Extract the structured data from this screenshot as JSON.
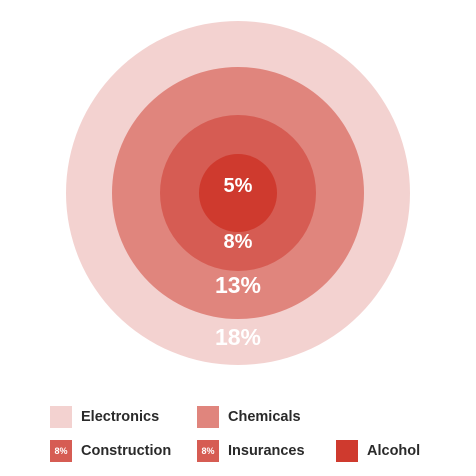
{
  "chart_data": {
    "type": "nested-circle",
    "title": "",
    "series": [
      {
        "name": "Electronics",
        "value": 18,
        "label": "18%",
        "color": "#f3d2d0"
      },
      {
        "name": "Chemicals",
        "value": 13,
        "label": "13%",
        "color": "#e0857d"
      },
      {
        "name": "Construction",
        "value": 8,
        "label": "8%",
        "color": "#d65c53"
      },
      {
        "name": "Insurances",
        "value": 8,
        "label": "8%",
        "color": "#d65c53"
      },
      {
        "name": "Alcohol",
        "value": 5,
        "label": "5%",
        "color": "#cf3a2e"
      }
    ],
    "legend": {
      "position": "bottom",
      "badges": {
        "Construction": "8%",
        "Insurances": "8%"
      }
    }
  }
}
